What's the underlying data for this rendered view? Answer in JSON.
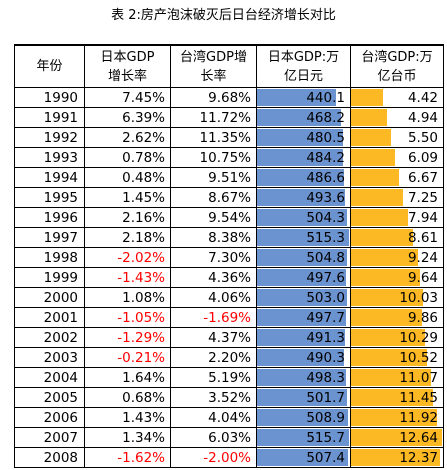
{
  "title": "表 2:房产泡沫破灭后日台经济增长对比",
  "headers": [
    "年份",
    "日本GDP\n增长率",
    "台湾GDP增\n长率",
    "日本GDP:万\n亿日元",
    "台湾GDP:万\n亿台币"
  ],
  "colors": {
    "japan_bar": "#6b93d0",
    "taiwan_bar": "#fdb924",
    "negative_text": "#ff0000"
  },
  "bar_scales": {
    "japan_max": 515.7,
    "taiwan_max": 12.64
  },
  "rows": [
    {
      "year": "1990",
      "jp_growth": "7.45%",
      "tw_growth": "9.68%",
      "jp_gdp": 440.1,
      "tw_gdp": 4.42,
      "jp_gdp_label": "440.1",
      "tw_gdp_label": "4.42"
    },
    {
      "year": "1991",
      "jp_growth": "6.39%",
      "tw_growth": "11.72%",
      "jp_gdp": 468.2,
      "tw_gdp": 4.94,
      "jp_gdp_label": "468.2",
      "tw_gdp_label": "4.94"
    },
    {
      "year": "1992",
      "jp_growth": "2.62%",
      "tw_growth": "11.35%",
      "jp_gdp": 480.5,
      "tw_gdp": 5.5,
      "jp_gdp_label": "480.5",
      "tw_gdp_label": "5.50"
    },
    {
      "year": "1993",
      "jp_growth": "0.78%",
      "tw_growth": "10.75%",
      "jp_gdp": 484.2,
      "tw_gdp": 6.09,
      "jp_gdp_label": "484.2",
      "tw_gdp_label": "6.09"
    },
    {
      "year": "1994",
      "jp_growth": "0.48%",
      "tw_growth": "9.51%",
      "jp_gdp": 486.6,
      "tw_gdp": 6.67,
      "jp_gdp_label": "486.6",
      "tw_gdp_label": "6.67"
    },
    {
      "year": "1995",
      "jp_growth": "1.45%",
      "tw_growth": "8.67%",
      "jp_gdp": 493.6,
      "tw_gdp": 7.25,
      "jp_gdp_label": "493.6",
      "tw_gdp_label": "7.25"
    },
    {
      "year": "1996",
      "jp_growth": "2.16%",
      "tw_growth": "9.54%",
      "jp_gdp": 504.3,
      "tw_gdp": 7.94,
      "jp_gdp_label": "504.3",
      "tw_gdp_label": "7.94"
    },
    {
      "year": "1997",
      "jp_growth": "2.18%",
      "tw_growth": "8.38%",
      "jp_gdp": 515.3,
      "tw_gdp": 8.61,
      "jp_gdp_label": "515.3",
      "tw_gdp_label": "8.61"
    },
    {
      "year": "1998",
      "jp_growth": "-2.02%",
      "tw_growth": "7.30%",
      "jp_gdp": 504.8,
      "tw_gdp": 9.24,
      "jp_gdp_label": "504.8",
      "tw_gdp_label": "9.24"
    },
    {
      "year": "1999",
      "jp_growth": "-1.43%",
      "tw_growth": "4.36%",
      "jp_gdp": 497.6,
      "tw_gdp": 9.64,
      "jp_gdp_label": "497.6",
      "tw_gdp_label": "9.64"
    },
    {
      "year": "2000",
      "jp_growth": "1.08%",
      "tw_growth": "4.06%",
      "jp_gdp": 503.0,
      "tw_gdp": 10.03,
      "jp_gdp_label": "503.0",
      "tw_gdp_label": "10.03"
    },
    {
      "year": "2001",
      "jp_growth": "-1.05%",
      "tw_growth": "-1.69%",
      "jp_gdp": 497.7,
      "tw_gdp": 9.86,
      "jp_gdp_label": "497.7",
      "tw_gdp_label": "9.86"
    },
    {
      "year": "2002",
      "jp_growth": "-1.29%",
      "tw_growth": "4.37%",
      "jp_gdp": 491.3,
      "tw_gdp": 10.29,
      "jp_gdp_label": "491.3",
      "tw_gdp_label": "10.29"
    },
    {
      "year": "2003",
      "jp_growth": "-0.21%",
      "tw_growth": "2.20%",
      "jp_gdp": 490.3,
      "tw_gdp": 10.52,
      "jp_gdp_label": "490.3",
      "tw_gdp_label": "10.52"
    },
    {
      "year": "2004",
      "jp_growth": "1.64%",
      "tw_growth": "5.19%",
      "jp_gdp": 498.3,
      "tw_gdp": 11.07,
      "jp_gdp_label": "498.3",
      "tw_gdp_label": "11.07"
    },
    {
      "year": "2005",
      "jp_growth": "0.68%",
      "tw_growth": "3.52%",
      "jp_gdp": 501.7,
      "tw_gdp": 11.45,
      "jp_gdp_label": "501.7",
      "tw_gdp_label": "11.45"
    },
    {
      "year": "2006",
      "jp_growth": "1.43%",
      "tw_growth": "4.04%",
      "jp_gdp": 508.9,
      "tw_gdp": 11.92,
      "jp_gdp_label": "508.9",
      "tw_gdp_label": "11.92"
    },
    {
      "year": "2007",
      "jp_growth": "1.34%",
      "tw_growth": "6.03%",
      "jp_gdp": 515.7,
      "tw_gdp": 12.64,
      "jp_gdp_label": "515.7",
      "tw_gdp_label": "12.64"
    },
    {
      "year": "2008",
      "jp_growth": "-1.62%",
      "tw_growth": "-2.00%",
      "jp_gdp": 507.4,
      "tw_gdp": 12.37,
      "jp_gdp_label": "507.4",
      "tw_gdp_label": "12.37"
    }
  ]
}
